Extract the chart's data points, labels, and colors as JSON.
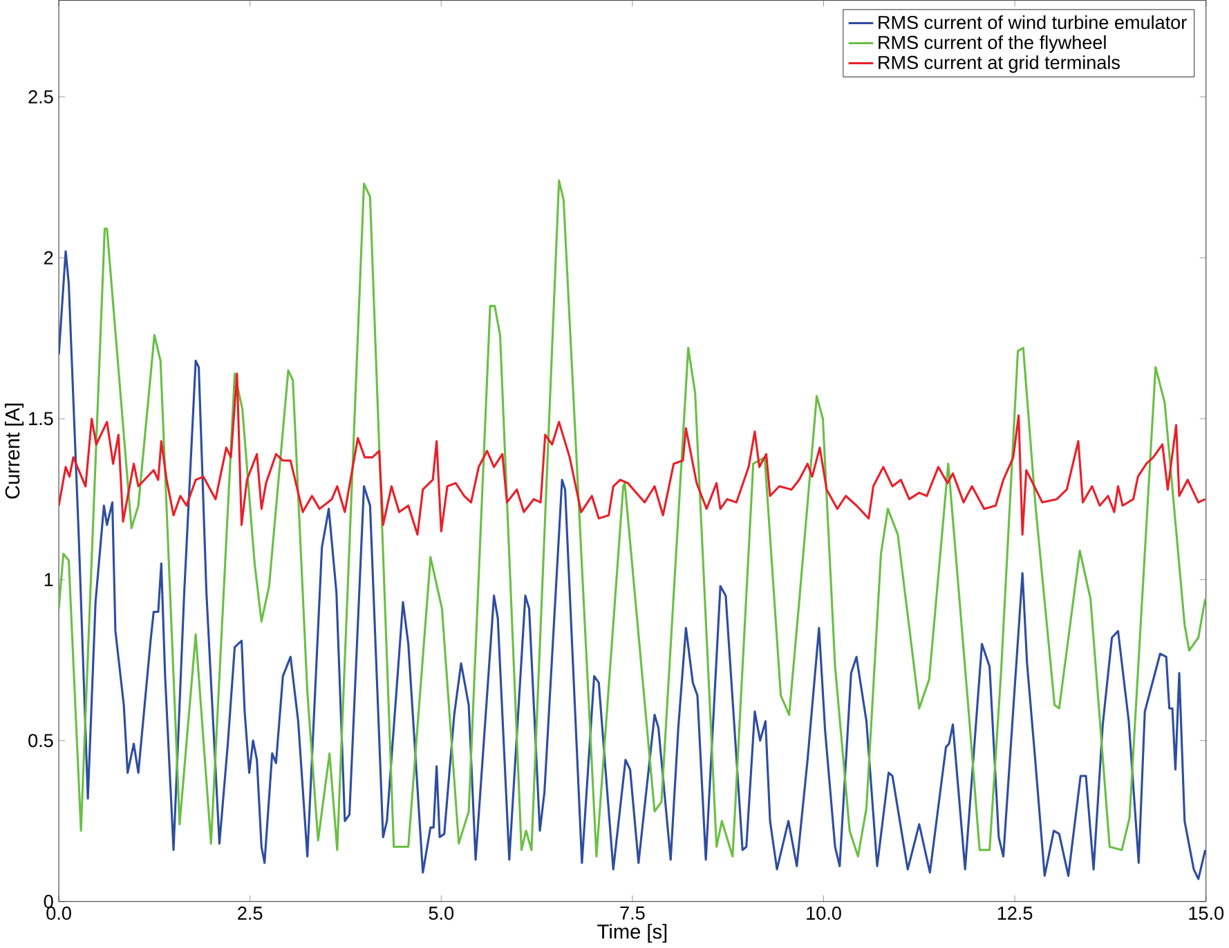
{
  "chart_data": {
    "type": "line",
    "xlabel": "Time [s]",
    "ylabel": "Current [A]",
    "xlim": [
      0,
      15
    ],
    "ylim": [
      0,
      2.8
    ],
    "xticks": [
      {
        "value": 0,
        "label": "0.0"
      },
      {
        "value": 2.5,
        "label": "2.5"
      },
      {
        "value": 5,
        "label": "5.0"
      },
      {
        "value": 7.5,
        "label": "7.5"
      },
      {
        "value": 10,
        "label": "10.0"
      },
      {
        "value": 12.5,
        "label": "12.5"
      },
      {
        "value": 15,
        "label": "15.0"
      }
    ],
    "yticks": [
      0,
      0.5,
      1,
      1.5,
      2,
      2.5
    ],
    "legend": "top right",
    "grid": false,
    "marker": "none",
    "line_style": "solid",
    "series": [
      {
        "name": "RMS current of wind turbine emulator",
        "color": "#2e4da0",
        "x": [
          0,
          0.09,
          0.13,
          0.26,
          0.38,
          0.48,
          0.59,
          0.63,
          0.7,
          0.74,
          0.85,
          0.9,
          0.98,
          1.04,
          1.2,
          1.24,
          1.3,
          1.34,
          1.39,
          1.5,
          1.64,
          1.79,
          1.83,
          1.93,
          2.1,
          2.21,
          2.3,
          2.39,
          2.43,
          2.49,
          2.54,
          2.59,
          2.65,
          2.69,
          2.79,
          2.84,
          2.93,
          3.03,
          3.13,
          3.25,
          3.44,
          3.53,
          3.63,
          3.74,
          3.8,
          3.99,
          4.07,
          4.24,
          4.29,
          4.5,
          4.57,
          4.76,
          4.86,
          4.9,
          4.94,
          4.98,
          5.04,
          5.17,
          5.26,
          5.36,
          5.45,
          5.69,
          5.74,
          5.89,
          6.1,
          6.15,
          6.29,
          6.35,
          6.58,
          6.62,
          6.84,
          7.0,
          7.06,
          7.25,
          7.41,
          7.47,
          7.58,
          7.79,
          7.84,
          8.0,
          8.1,
          8.2,
          8.29,
          8.35,
          8.46,
          8.65,
          8.72,
          8.94,
          8.99,
          9.1,
          9.17,
          9.24,
          9.3,
          9.39,
          9.54,
          9.65,
          9.79,
          9.94,
          10.02,
          10.15,
          10.21,
          10.36,
          10.43,
          10.56,
          10.7,
          10.85,
          10.9,
          11.1,
          11.25,
          11.39,
          11.6,
          11.64,
          11.69,
          11.85,
          12.07,
          12.17,
          12.29,
          12.35,
          12.6,
          12.66,
          12.76,
          12.89,
          13.01,
          13.08,
          13.2,
          13.36,
          13.43,
          13.53,
          13.65,
          13.77,
          13.85,
          13.99,
          14.12,
          14.2,
          14.4,
          14.48,
          14.52,
          14.56,
          14.6,
          14.65,
          14.72,
          14.84,
          14.9,
          14.99
        ],
        "values": [
          1.7,
          2.02,
          1.92,
          1.14,
          0.32,
          0.93,
          1.23,
          1.17,
          1.24,
          0.84,
          0.61,
          0.4,
          0.49,
          0.4,
          0.81,
          0.9,
          0.9,
          1.05,
          0.7,
          0.16,
          0.96,
          1.68,
          1.66,
          0.96,
          0.18,
          0.49,
          0.79,
          0.81,
          0.59,
          0.4,
          0.5,
          0.44,
          0.17,
          0.12,
          0.46,
          0.43,
          0.7,
          0.76,
          0.56,
          0.14,
          1.1,
          1.22,
          0.96,
          0.25,
          0.27,
          1.29,
          1.23,
          0.2,
          0.25,
          0.93,
          0.8,
          0.09,
          0.23,
          0.23,
          0.42,
          0.2,
          0.21,
          0.58,
          0.74,
          0.61,
          0.13,
          0.95,
          0.88,
          0.13,
          0.95,
          0.91,
          0.22,
          0.34,
          1.31,
          1.28,
          0.12,
          0.7,
          0.68,
          0.1,
          0.44,
          0.41,
          0.12,
          0.58,
          0.54,
          0.13,
          0.54,
          0.85,
          0.68,
          0.64,
          0.13,
          0.98,
          0.95,
          0.16,
          0.17,
          0.59,
          0.5,
          0.56,
          0.25,
          0.1,
          0.25,
          0.11,
          0.44,
          0.85,
          0.53,
          0.17,
          0.11,
          0.71,
          0.76,
          0.56,
          0.11,
          0.4,
          0.39,
          0.1,
          0.24,
          0.09,
          0.48,
          0.49,
          0.55,
          0.1,
          0.8,
          0.73,
          0.2,
          0.14,
          1.02,
          0.74,
          0.46,
          0.08,
          0.22,
          0.21,
          0.08,
          0.39,
          0.39,
          0.1,
          0.55,
          0.82,
          0.84,
          0.56,
          0.12,
          0.59,
          0.77,
          0.76,
          0.6,
          0.6,
          0.41,
          0.71,
          0.25,
          0.1,
          0.07,
          0.16
        ]
      },
      {
        "name": "RMS current of the flywheel",
        "color": "#6abf45",
        "x": [
          0,
          0.06,
          0.13,
          0.29,
          0.6,
          0.63,
          0.95,
          1.04,
          1.25,
          1.33,
          1.58,
          1.79,
          1.99,
          2.3,
          2.4,
          2.56,
          2.65,
          2.75,
          3.0,
          3.06,
          3.25,
          3.39,
          3.54,
          3.64,
          3.99,
          4.07,
          4.38,
          4.57,
          4.86,
          5.01,
          5.23,
          5.36,
          5.64,
          5.7,
          5.77,
          6.05,
          6.11,
          6.18,
          6.54,
          6.6,
          7.03,
          7.38,
          7.4,
          7.79,
          7.88,
          8.23,
          8.32,
          8.6,
          8.67,
          8.81,
          9.08,
          9.23,
          9.44,
          9.55,
          9.68,
          9.91,
          9.99,
          10.15,
          10.34,
          10.45,
          10.56,
          10.75,
          10.84,
          10.97,
          11.25,
          11.38,
          11.63,
          11.88,
          12.04,
          12.17,
          12.32,
          12.54,
          12.61,
          12.77,
          13.02,
          13.08,
          13.35,
          13.49,
          13.74,
          13.9,
          14.0,
          14.34,
          14.46,
          14.72,
          14.78,
          14.9,
          14.99
        ],
        "values": [
          0.91,
          1.08,
          1.06,
          0.22,
          2.09,
          2.09,
          1.16,
          1.23,
          1.76,
          1.68,
          0.24,
          0.83,
          0.18,
          1.64,
          1.53,
          1.05,
          0.87,
          0.98,
          1.65,
          1.62,
          0.65,
          0.19,
          0.46,
          0.16,
          2.23,
          2.19,
          0.17,
          0.17,
          1.07,
          0.91,
          0.18,
          0.28,
          1.85,
          1.85,
          1.76,
          0.16,
          0.22,
          0.16,
          2.24,
          2.18,
          0.14,
          1.29,
          1.3,
          0.28,
          0.31,
          1.72,
          1.58,
          0.17,
          0.25,
          0.14,
          1.36,
          1.38,
          0.64,
          0.58,
          0.93,
          1.57,
          1.5,
          0.73,
          0.22,
          0.14,
          0.29,
          1.08,
          1.22,
          1.14,
          0.6,
          0.69,
          1.36,
          0.64,
          0.16,
          0.16,
          0.71,
          1.71,
          1.72,
          1.23,
          0.61,
          0.6,
          1.09,
          0.94,
          0.17,
          0.16,
          0.26,
          1.66,
          1.55,
          0.86,
          0.78,
          0.82,
          0.94
        ]
      },
      {
        "name": "RMS current at grid terminals",
        "color": "#e8202a",
        "x": [
          0,
          0.09,
          0.14,
          0.19,
          0.35,
          0.43,
          0.49,
          0.63,
          0.71,
          0.78,
          0.84,
          0.98,
          1.04,
          1.24,
          1.3,
          1.34,
          1.41,
          1.5,
          1.59,
          1.67,
          1.79,
          1.89,
          2.05,
          2.19,
          2.25,
          2.33,
          2.39,
          2.46,
          2.59,
          2.65,
          2.71,
          2.84,
          2.93,
          3.03,
          3.19,
          3.31,
          3.41,
          3.57,
          3.64,
          3.74,
          3.91,
          4.0,
          4.1,
          4.19,
          4.24,
          4.35,
          4.45,
          4.57,
          4.69,
          4.76,
          4.89,
          4.94,
          5.0,
          5.08,
          5.19,
          5.3,
          5.39,
          5.49,
          5.6,
          5.69,
          5.8,
          5.86,
          5.99,
          6.08,
          6.21,
          6.3,
          6.36,
          6.45,
          6.54,
          6.68,
          6.83,
          6.97,
          7.06,
          7.19,
          7.25,
          7.34,
          7.44,
          7.66,
          7.79,
          7.9,
          8.04,
          8.16,
          8.2,
          8.34,
          8.47,
          8.6,
          8.65,
          8.74,
          8.86,
          9.02,
          9.1,
          9.16,
          9.25,
          9.3,
          9.42,
          9.58,
          9.68,
          9.79,
          9.85,
          9.95,
          10.04,
          10.18,
          10.29,
          10.43,
          10.59,
          10.65,
          10.78,
          10.9,
          11.01,
          11.12,
          11.25,
          11.35,
          11.5,
          11.62,
          11.69,
          11.83,
          11.94,
          12.1,
          12.25,
          12.35,
          12.48,
          12.55,
          12.6,
          12.65,
          12.86,
          13.05,
          13.18,
          13.33,
          13.39,
          13.51,
          13.61,
          13.72,
          13.8,
          13.85,
          13.91,
          14.05,
          14.11,
          14.22,
          14.31,
          14.43,
          14.5,
          14.61,
          14.65,
          14.76,
          14.9,
          14.99
        ],
        "values": [
          1.23,
          1.35,
          1.32,
          1.38,
          1.29,
          1.5,
          1.42,
          1.49,
          1.36,
          1.45,
          1.18,
          1.36,
          1.29,
          1.34,
          1.31,
          1.43,
          1.31,
          1.2,
          1.26,
          1.23,
          1.31,
          1.32,
          1.25,
          1.41,
          1.38,
          1.64,
          1.17,
          1.31,
          1.39,
          1.22,
          1.3,
          1.39,
          1.37,
          1.37,
          1.21,
          1.26,
          1.22,
          1.25,
          1.29,
          1.21,
          1.44,
          1.38,
          1.38,
          1.4,
          1.17,
          1.29,
          1.21,
          1.23,
          1.14,
          1.28,
          1.31,
          1.43,
          1.15,
          1.29,
          1.3,
          1.26,
          1.24,
          1.35,
          1.4,
          1.35,
          1.39,
          1.24,
          1.28,
          1.21,
          1.25,
          1.24,
          1.45,
          1.42,
          1.49,
          1.38,
          1.21,
          1.26,
          1.19,
          1.2,
          1.29,
          1.31,
          1.3,
          1.24,
          1.29,
          1.2,
          1.36,
          1.37,
          1.47,
          1.3,
          1.22,
          1.3,
          1.22,
          1.25,
          1.24,
          1.35,
          1.46,
          1.35,
          1.39,
          1.26,
          1.29,
          1.28,
          1.31,
          1.36,
          1.32,
          1.41,
          1.28,
          1.22,
          1.26,
          1.23,
          1.19,
          1.29,
          1.35,
          1.29,
          1.31,
          1.25,
          1.27,
          1.26,
          1.35,
          1.3,
          1.33,
          1.24,
          1.29,
          1.22,
          1.23,
          1.31,
          1.38,
          1.51,
          1.14,
          1.34,
          1.24,
          1.25,
          1.28,
          1.43,
          1.24,
          1.29,
          1.23,
          1.26,
          1.21,
          1.29,
          1.23,
          1.25,
          1.32,
          1.36,
          1.38,
          1.42,
          1.28,
          1.48,
          1.26,
          1.31,
          1.24,
          1.25
        ]
      }
    ]
  }
}
